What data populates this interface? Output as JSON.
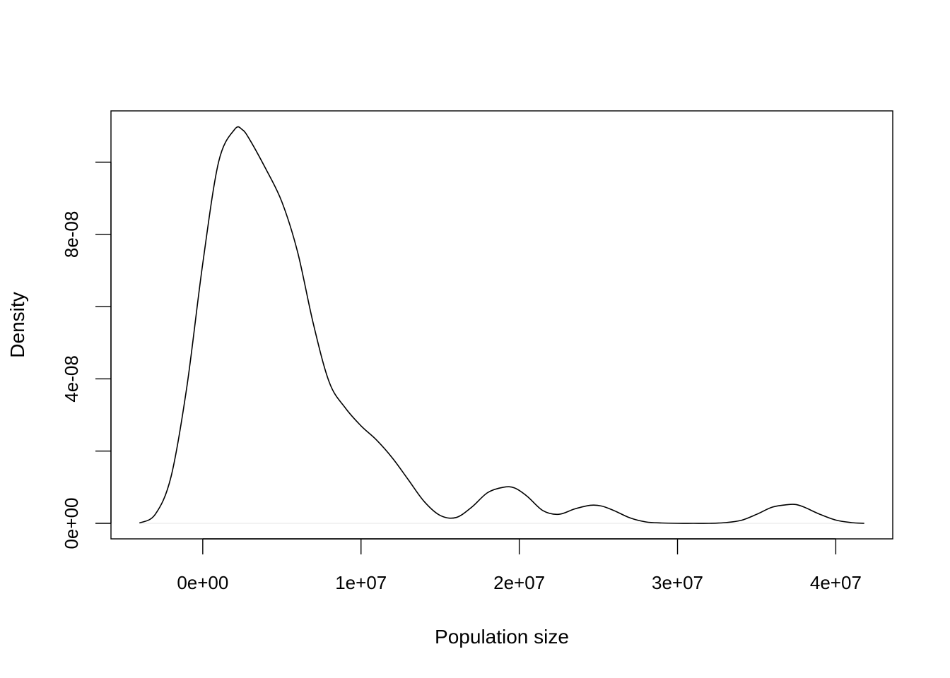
{
  "chart_data": {
    "type": "line",
    "title": "",
    "xlabel": "Population size",
    "ylabel": "Density",
    "xlim": [
      -5800000,
      43600000
    ],
    "ylim": [
      -4.3e-09,
      1.142e-07
    ],
    "x_ticks": [
      0,
      10000000,
      20000000,
      30000000,
      40000000
    ],
    "x_tick_labels": [
      "0e+00",
      "1e+07",
      "2e+07",
      "3e+07",
      "4e+07"
    ],
    "y_ticks": [
      0,
      2e-08,
      4e-08,
      6e-08,
      8e-08,
      1e-07
    ],
    "y_tick_labels": [
      "0e+00",
      "",
      "4e-08",
      "",
      "8e-08",
      ""
    ],
    "grid": false,
    "series": [
      {
        "x": [
          -4000000,
          -3000000,
          -2000000,
          -1000000,
          0,
          1000000,
          2000000,
          2500000,
          3000000,
          4000000,
          5000000,
          6000000,
          7000000,
          8000000,
          9000000,
          10000000,
          11000000,
          12000000,
          13000000,
          14000000,
          15000000,
          16000000,
          17000000,
          18000000,
          19000000,
          19700000,
          20500000,
          21500000,
          22500000,
          23500000,
          24500000,
          25200000,
          26000000,
          27000000,
          28000000,
          29000000,
          30000000,
          31000000,
          32000000,
          33000000,
          34000000,
          35000000,
          36000000,
          37000000,
          37500000,
          38000000,
          39000000,
          40000000,
          41000000,
          41800000
        ],
        "y": [
          1e-10,
          2.5e-09,
          1.3e-08,
          3.8e-08,
          7.2e-08,
          1e-07,
          1.09e-07,
          1.09e-07,
          1.06e-07,
          9.8e-08,
          8.9e-08,
          7.5e-08,
          5.5e-08,
          3.9e-08,
          3.2e-08,
          2.7e-08,
          2.3e-08,
          1.8e-08,
          1.2e-08,
          6e-09,
          2.2e-09,
          1.6e-09,
          4.5e-09,
          8.5e-09,
          1e-08,
          9.8e-09,
          7.5e-09,
          3.5e-09,
          2.5e-09,
          4e-09,
          5e-09,
          4.8e-09,
          3.5e-09,
          1.5e-09,
          4e-10,
          1e-10,
          0.0,
          0.0,
          0.0,
          2e-10,
          8e-10,
          2.5e-09,
          4.5e-09,
          5.2e-09,
          5.2e-09,
          4.5e-09,
          2.5e-09,
          9e-10,
          2e-10,
          0.0
        ]
      }
    ]
  }
}
